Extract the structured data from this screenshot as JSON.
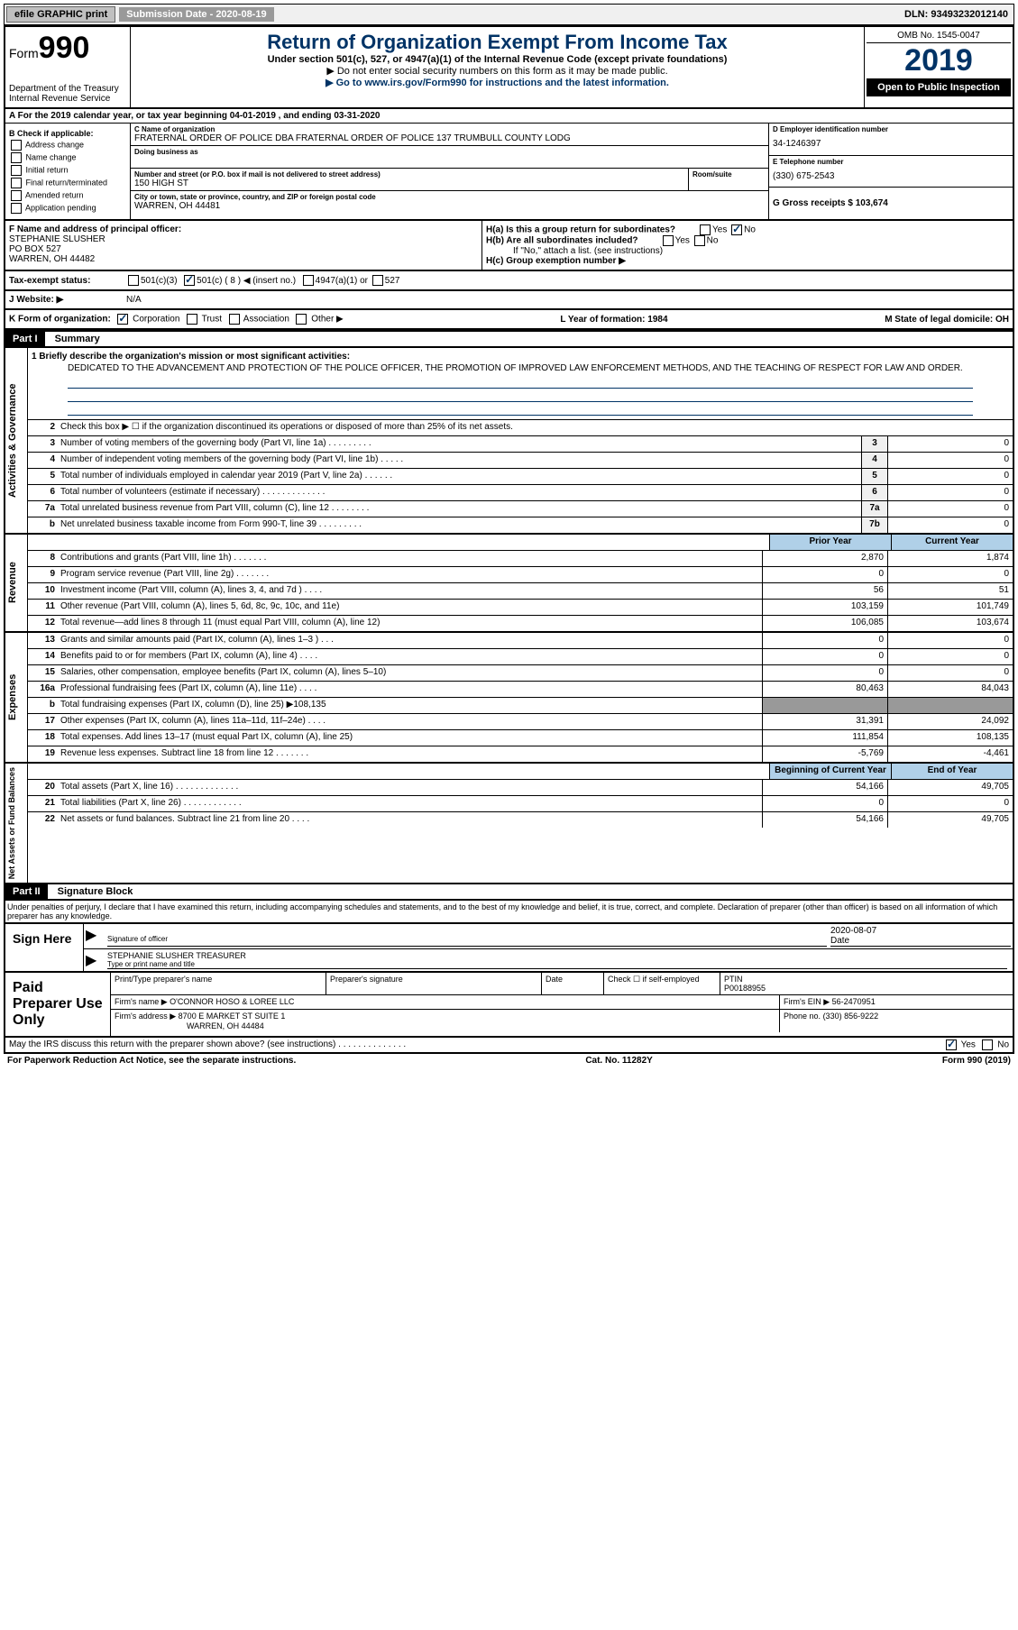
{
  "topbar": {
    "efile": "efile GRAPHIC print",
    "submission": "Submission Date - 2020-08-19",
    "dln": "DLN: 93493232012140"
  },
  "header": {
    "form": "Form",
    "formnum": "990",
    "dept": "Department of the Treasury\nInternal Revenue Service",
    "title": "Return of Organization Exempt From Income Tax",
    "subtitle": "Under section 501(c), 527, or 4947(a)(1) of the Internal Revenue Code (except private foundations)",
    "note1": "▶ Do not enter social security numbers on this form as it may be made public.",
    "note2": "▶ Go to www.irs.gov/Form990 for instructions and the latest information.",
    "omb": "OMB No. 1545-0047",
    "year": "2019",
    "open": "Open to Public Inspection"
  },
  "sectionA": "A For the 2019 calendar year, or tax year beginning 04-01-2019   , and ending 03-31-2020",
  "checkB": {
    "label": "B Check if applicable:",
    "items": [
      "Address change",
      "Name change",
      "Initial return",
      "Final return/terminated",
      "Amended return",
      "Application pending"
    ]
  },
  "org": {
    "nameLabel": "C Name of organization",
    "name": "FRATERNAL ORDER OF POLICE DBA FRATERNAL ORDER OF POLICE 137 TRUMBULL COUNTY LODG",
    "dbaLabel": "Doing business as",
    "addrLabel": "Number and street (or P.O. box if mail is not delivered to street address)",
    "addr": "150 HIGH ST",
    "roomLabel": "Room/suite",
    "cityLabel": "City or town, state or province, country, and ZIP or foreign postal code",
    "city": "WARREN, OH  44481"
  },
  "colD": {
    "einLabel": "D Employer identification number",
    "ein": "34-1246397",
    "telLabel": "E Telephone number",
    "tel": "(330) 675-2543",
    "grossLabel": "G Gross receipts $ 103,674"
  },
  "officer": {
    "label": "F Name and address of principal officer:",
    "name": "STEPHANIE SLUSHER",
    "addr1": "PO BOX 527",
    "addr2": "WARREN, OH  44482"
  },
  "hSection": {
    "ha": "H(a)  Is this a group return for subordinates?",
    "hb": "H(b)  Are all subordinates included?",
    "hbNote": "If \"No,\" attach a list. (see instructions)",
    "hc": "H(c)  Group exemption number ▶"
  },
  "taxStatus": {
    "label": "Tax-exempt status:",
    "c3": "501(c)(3)",
    "c": "501(c) ( 8 ) ◀ (insert no.)",
    "a1": "4947(a)(1) or",
    "s527": "527"
  },
  "website": {
    "label": "J Website: ▶",
    "val": "N/A"
  },
  "kRow": {
    "label": "K Form of organization:",
    "corp": "Corporation",
    "trust": "Trust",
    "assoc": "Association",
    "other": "Other ▶",
    "yearLabel": "L Year of formation: 1984",
    "stateLabel": "M State of legal domicile: OH"
  },
  "part1": {
    "header": "Part I",
    "title": "Summary",
    "mission_label": "1  Briefly describe the organization's mission or most significant activities:",
    "mission": "DEDICATED TO THE ADVANCEMENT AND PROTECTION OF THE POLICE OFFICER, THE PROMOTION OF IMPROVED LAW ENFORCEMENT METHODS, AND THE TEACHING OF RESPECT FOR LAW AND ORDER."
  },
  "sideLabels": {
    "gov": "Activities & Governance",
    "rev": "Revenue",
    "exp": "Expenses",
    "net": "Net Assets or Fund Balances"
  },
  "govRows": [
    {
      "n": "2",
      "d": "Check this box ▶ ☐  if the organization discontinued its operations or disposed of more than 25% of its net assets."
    },
    {
      "n": "3",
      "d": "Number of voting members of the governing body (Part VI, line 1a)   .   .   .   .   .   .   .   .   .",
      "b": "3",
      "v": "0"
    },
    {
      "n": "4",
      "d": "Number of independent voting members of the governing body (Part VI, line 1b)   .   .   .   .   .",
      "b": "4",
      "v": "0"
    },
    {
      "n": "5",
      "d": "Total number of individuals employed in calendar year 2019 (Part V, line 2a)   .   .   .   .   .   .",
      "b": "5",
      "v": "0"
    },
    {
      "n": "6",
      "d": "Total number of volunteers (estimate if necessary)   .   .   .   .   .   .   .   .   .   .   .   .   .",
      "b": "6",
      "v": "0"
    },
    {
      "n": "7a",
      "d": "Total unrelated business revenue from Part VIII, column (C), line 12   .   .   .   .   .   .   .   .",
      "b": "7a",
      "v": "0"
    },
    {
      "n": "b",
      "d": "Net unrelated business taxable income from Form 990-T, line 39   .   .   .   .   .   .   .   .   .",
      "b": "7b",
      "v": "0"
    }
  ],
  "colHeaders": {
    "prior": "Prior Year",
    "curr": "Current Year"
  },
  "revRows": [
    {
      "n": "8",
      "d": "Contributions and grants (Part VIII, line 1h)   .   .   .   .   .   .   .",
      "p": "2,870",
      "c": "1,874"
    },
    {
      "n": "9",
      "d": "Program service revenue (Part VIII, line 2g)   .   .   .   .   .   .   .",
      "p": "0",
      "c": "0"
    },
    {
      "n": "10",
      "d": "Investment income (Part VIII, column (A), lines 3, 4, and 7d )   .   .   .   .",
      "p": "56",
      "c": "51"
    },
    {
      "n": "11",
      "d": "Other revenue (Part VIII, column (A), lines 5, 6d, 8c, 9c, 10c, and 11e)",
      "p": "103,159",
      "c": "101,749"
    },
    {
      "n": "12",
      "d": "Total revenue—add lines 8 through 11 (must equal Part VIII, column (A), line 12)",
      "p": "106,085",
      "c": "103,674"
    }
  ],
  "expRows": [
    {
      "n": "13",
      "d": "Grants and similar amounts paid (Part IX, column (A), lines 1–3 )   .   .   .",
      "p": "0",
      "c": "0"
    },
    {
      "n": "14",
      "d": "Benefits paid to or for members (Part IX, column (A), line 4)   .   .   .   .",
      "p": "0",
      "c": "0"
    },
    {
      "n": "15",
      "d": "Salaries, other compensation, employee benefits (Part IX, column (A), lines 5–10)",
      "p": "0",
      "c": "0"
    },
    {
      "n": "16a",
      "d": "Professional fundraising fees (Part IX, column (A), line 11e)   .   .   .   .",
      "p": "80,463",
      "c": "84,043"
    },
    {
      "n": "b",
      "d": "Total fundraising expenses (Part IX, column (D), line 25) ▶108,135",
      "grey": true
    },
    {
      "n": "17",
      "d": "Other expenses (Part IX, column (A), lines 11a–11d, 11f–24e)   .   .   .   .",
      "p": "31,391",
      "c": "24,092"
    },
    {
      "n": "18",
      "d": "Total expenses. Add lines 13–17 (must equal Part IX, column (A), line 25)",
      "p": "111,854",
      "c": "108,135"
    },
    {
      "n": "19",
      "d": "Revenue less expenses. Subtract line 18 from line 12   .   .   .   .   .   .   .",
      "p": "-5,769",
      "c": "-4,461"
    }
  ],
  "netHeaders": {
    "beg": "Beginning of Current Year",
    "end": "End of Year"
  },
  "netRows": [
    {
      "n": "20",
      "d": "Total assets (Part X, line 16)   .   .   .   .   .   .   .   .   .   .   .   .   .",
      "p": "54,166",
      "c": "49,705"
    },
    {
      "n": "21",
      "d": "Total liabilities (Part X, line 26)   .   .   .   .   .   .   .   .   .   .   .   .",
      "p": "0",
      "c": "0"
    },
    {
      "n": "22",
      "d": "Net assets or fund balances. Subtract line 21 from line 20   .   .   .   .",
      "p": "54,166",
      "c": "49,705"
    }
  ],
  "part2": {
    "header": "Part II",
    "title": "Signature Block",
    "penalties": "Under penalties of perjury, I declare that I have examined this return, including accompanying schedules and statements, and to the best of my knowledge and belief, it is true, correct, and complete. Declaration of preparer (other than officer) is based on all information of which preparer has any knowledge."
  },
  "sign": {
    "here": "Sign Here",
    "sigOfficer": "Signature of officer",
    "date": "Date",
    "dateVal": "2020-08-07",
    "typed": "STEPHANIE SLUSHER TREASURER",
    "typedLabel": "Type or print name and title"
  },
  "prep": {
    "label": "Paid Preparer Use Only",
    "nameLabel": "Print/Type preparer's name",
    "sigLabel": "Preparer's signature",
    "dateLabel": "Date",
    "checkLabel": "Check ☐ if self-employed",
    "ptinLabel": "PTIN",
    "ptin": "P00188955",
    "firmNameLabel": "Firm's name    ▶",
    "firmName": "O'CONNOR HOSO & LOREE LLC",
    "firmEinLabel": "Firm's EIN ▶",
    "firmEin": "56-2470951",
    "firmAddrLabel": "Firm's address ▶",
    "firmAddr1": "8700 E MARKET ST SUITE 1",
    "firmAddr2": "WARREN, OH  44484",
    "phoneLabel": "Phone no.",
    "phone": "(330) 856-9222"
  },
  "footer": {
    "discuss": "May the IRS discuss this return with the preparer shown above? (see instructions)   .   .   .   .   .   .   .   .   .   .   .   .   .   .",
    "paperwork": "For Paperwork Reduction Act Notice, see the separate instructions.",
    "cat": "Cat. No. 11282Y",
    "form": "Form 990 (2019)"
  }
}
